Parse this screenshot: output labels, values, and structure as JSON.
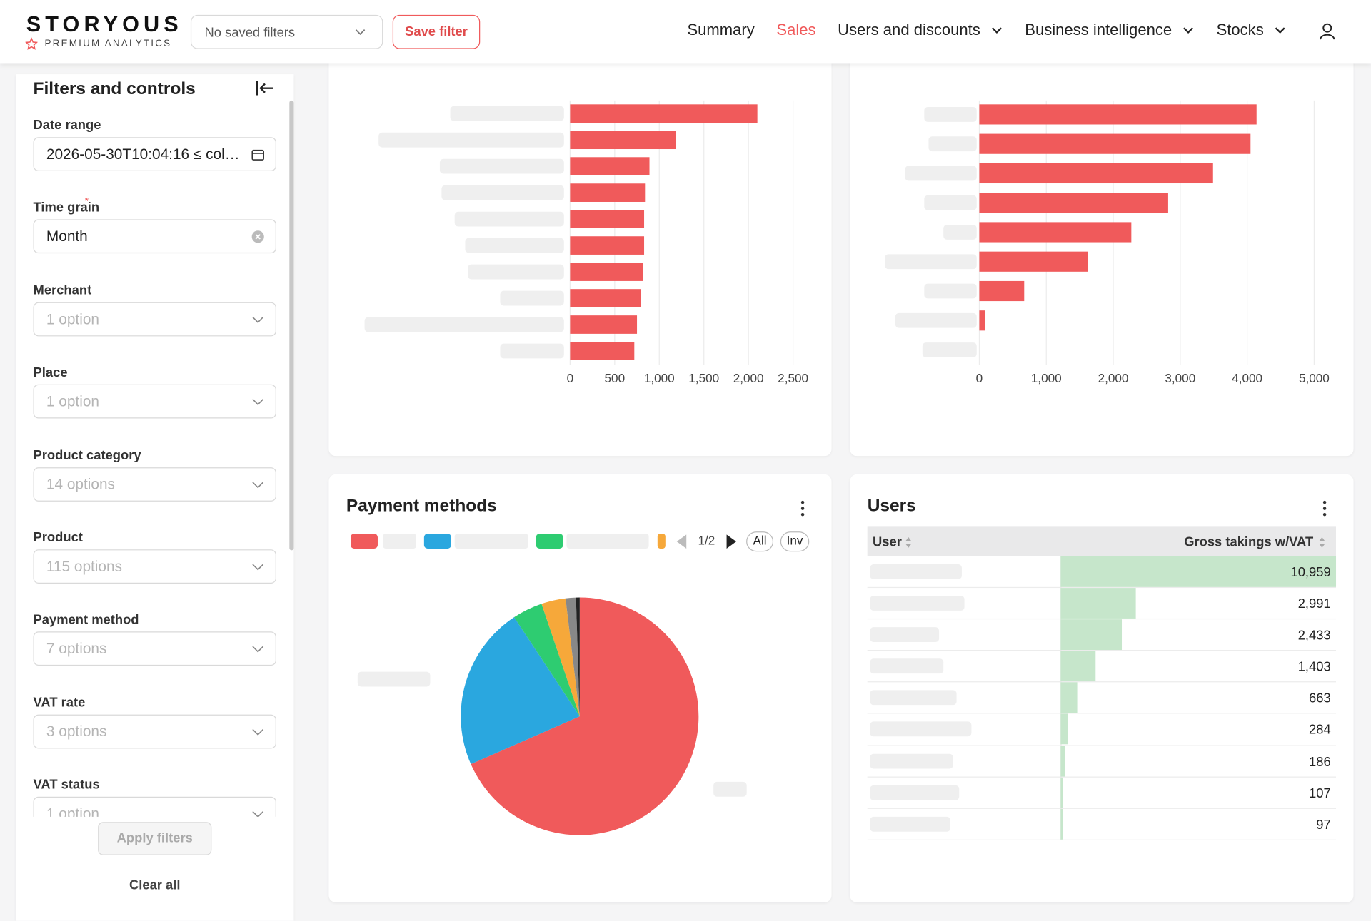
{
  "header": {
    "logo": "STORYOUS",
    "tagline": "PREMIUM ANALYTICS",
    "saved_filters": "No saved filters",
    "save_button": "Save filter",
    "nav": [
      {
        "label": "Summary"
      },
      {
        "label": "Sales",
        "active": true
      },
      {
        "label": "Users and discounts",
        "dropdown": true
      },
      {
        "label": "Business intelligence",
        "dropdown": true
      },
      {
        "label": "Stocks",
        "dropdown": true
      }
    ]
  },
  "sidebar": {
    "title": "Filters and controls",
    "filters": [
      {
        "label": "Date range",
        "value": "2026-05-30T10:04:16 ≤ col…",
        "icon": "calendar"
      },
      {
        "label": "Time grain",
        "required_mark": "*",
        "value": "Month",
        "icon": "clear"
      },
      {
        "label": "Merchant",
        "value": "1 option",
        "icon": "chevron"
      },
      {
        "label": "Place",
        "value": "1 option",
        "icon": "chevron"
      },
      {
        "label": "Product category",
        "value": "14 options",
        "icon": "chevron"
      },
      {
        "label": "Product",
        "value": "115 options",
        "icon": "chevron"
      },
      {
        "label": "Payment method",
        "value": "7 options",
        "icon": "chevron"
      },
      {
        "label": "VAT rate",
        "value": "3 options",
        "icon": "chevron"
      },
      {
        "label": "VAT status",
        "value": "1 option",
        "icon": "chevron"
      }
    ],
    "apply_button": "Apply filters",
    "clear_button": "Clear all"
  },
  "chart_data": [
    {
      "type": "bar",
      "orientation": "horizontal",
      "categories": [
        null,
        null,
        null,
        null,
        null,
        null,
        null,
        null,
        null,
        null
      ],
      "values": [
        2100,
        1190,
        890,
        840,
        830,
        830,
        820,
        790,
        750,
        720
      ],
      "color": "#f05a5b",
      "xlim": [
        0,
        2500
      ],
      "xticks": [
        0,
        500,
        {
          "value": 1000,
          "label": "1,000"
        },
        {
          "value": 1500,
          "label": "1,500"
        },
        {
          "value": 2000,
          "label": "2,000"
        },
        {
          "value": 2500,
          "label": "2,500"
        }
      ],
      "grid": true
    },
    {
      "type": "bar",
      "orientation": "horizontal",
      "categories": [
        null,
        null,
        null,
        null,
        null,
        null,
        null,
        null,
        null
      ],
      "values": [
        4140,
        4050,
        3490,
        2820,
        2270,
        1620,
        670,
        90,
        0
      ],
      "color": "#f05a5b",
      "xlim": [
        0,
        5000
      ],
      "xticks": [
        0,
        {
          "value": 1000,
          "label": "1,000"
        },
        {
          "value": 2000,
          "label": "2,000"
        },
        {
          "value": 3000,
          "label": "3,000"
        },
        {
          "value": 4000,
          "label": "4,000"
        },
        {
          "value": 5000,
          "label": "5,000"
        }
      ],
      "grid": true
    },
    {
      "type": "pie",
      "title": "Payment methods",
      "values": [
        68.4,
        22.3,
        4.1,
        3.3,
        1.4,
        0.5
      ],
      "colors": [
        "#f05a5b",
        "#2aa7df",
        "#2ecc71",
        "#f6a83a",
        "#888888",
        "#222222"
      ],
      "legend_page": "1/2",
      "legend_buttons": [
        "All",
        "Inv"
      ]
    }
  ],
  "users_table": {
    "title": "Users",
    "columns": [
      "User",
      "Gross takings w/VAT"
    ],
    "values": [
      10959,
      2991,
      2433,
      1403,
      663,
      284,
      186,
      107,
      97
    ],
    "value_labels": [
      "10,959",
      "2,991",
      "2,433",
      "1,403",
      "663",
      "284",
      "186",
      "107",
      "97"
    ],
    "bar_color": "#c6e6cb"
  }
}
